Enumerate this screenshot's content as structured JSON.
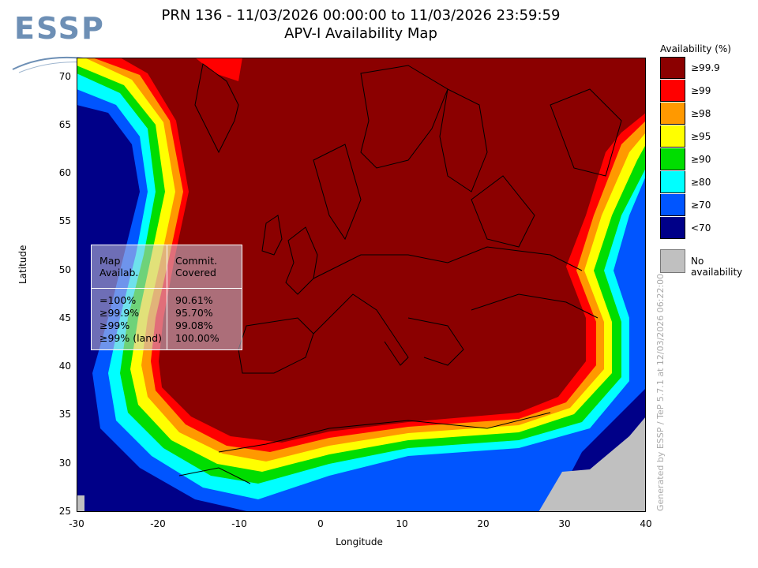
{
  "logo": {
    "text": "ESSP"
  },
  "title": {
    "line1": "PRN 136 - 11/03/2026 00:00:00 to 11/03/2026 23:59:59",
    "line2": "APV-I Availability Map"
  },
  "axes": {
    "xlabel": "Longitude",
    "ylabel": "Latitude",
    "xticks": [
      "-30",
      "-20",
      "-10",
      "0",
      "10",
      "20",
      "30",
      "40"
    ],
    "yticks": [
      "70",
      "65",
      "60",
      "55",
      "50",
      "45",
      "40",
      "35",
      "30",
      "25"
    ],
    "xlim": [
      -30,
      40
    ],
    "ylim": [
      25,
      72
    ]
  },
  "legend": {
    "title": "Availability (%)",
    "items": [
      {
        "label": "≥99.9",
        "color": "#8b0000"
      },
      {
        "label": "≥99",
        "color": "#ff0000"
      },
      {
        "label": "≥98",
        "color": "#ff9900"
      },
      {
        "label": "≥95",
        "color": "#ffff00"
      },
      {
        "label": "≥90",
        "color": "#00dd00"
      },
      {
        "label": "≥80",
        "color": "#00ffff"
      },
      {
        "label": "≥70",
        "color": "#0055ff"
      },
      {
        "label": "<70",
        "color": "#000088"
      }
    ],
    "no_availability": {
      "label": "No availability",
      "color": "#c0c0c0"
    }
  },
  "stats_table": {
    "headers": [
      "Map Availab.",
      "Commit. Covered"
    ],
    "header1_lines": [
      "Map",
      "Availab."
    ],
    "header2_lines": [
      "Commit.",
      "Covered"
    ],
    "rows": [
      {
        "map": "=100%",
        "covered": "90.61%"
      },
      {
        "map": "≥99.9%",
        "covered": "95.70%"
      },
      {
        "map": "≥99%",
        "covered": "99.08%"
      },
      {
        "map": "≥99% (land)",
        "covered": "100.00%"
      }
    ]
  },
  "credit": "Generated by ESSP / TeP 5.7.1 at 12/03/2026 06:22:00"
}
